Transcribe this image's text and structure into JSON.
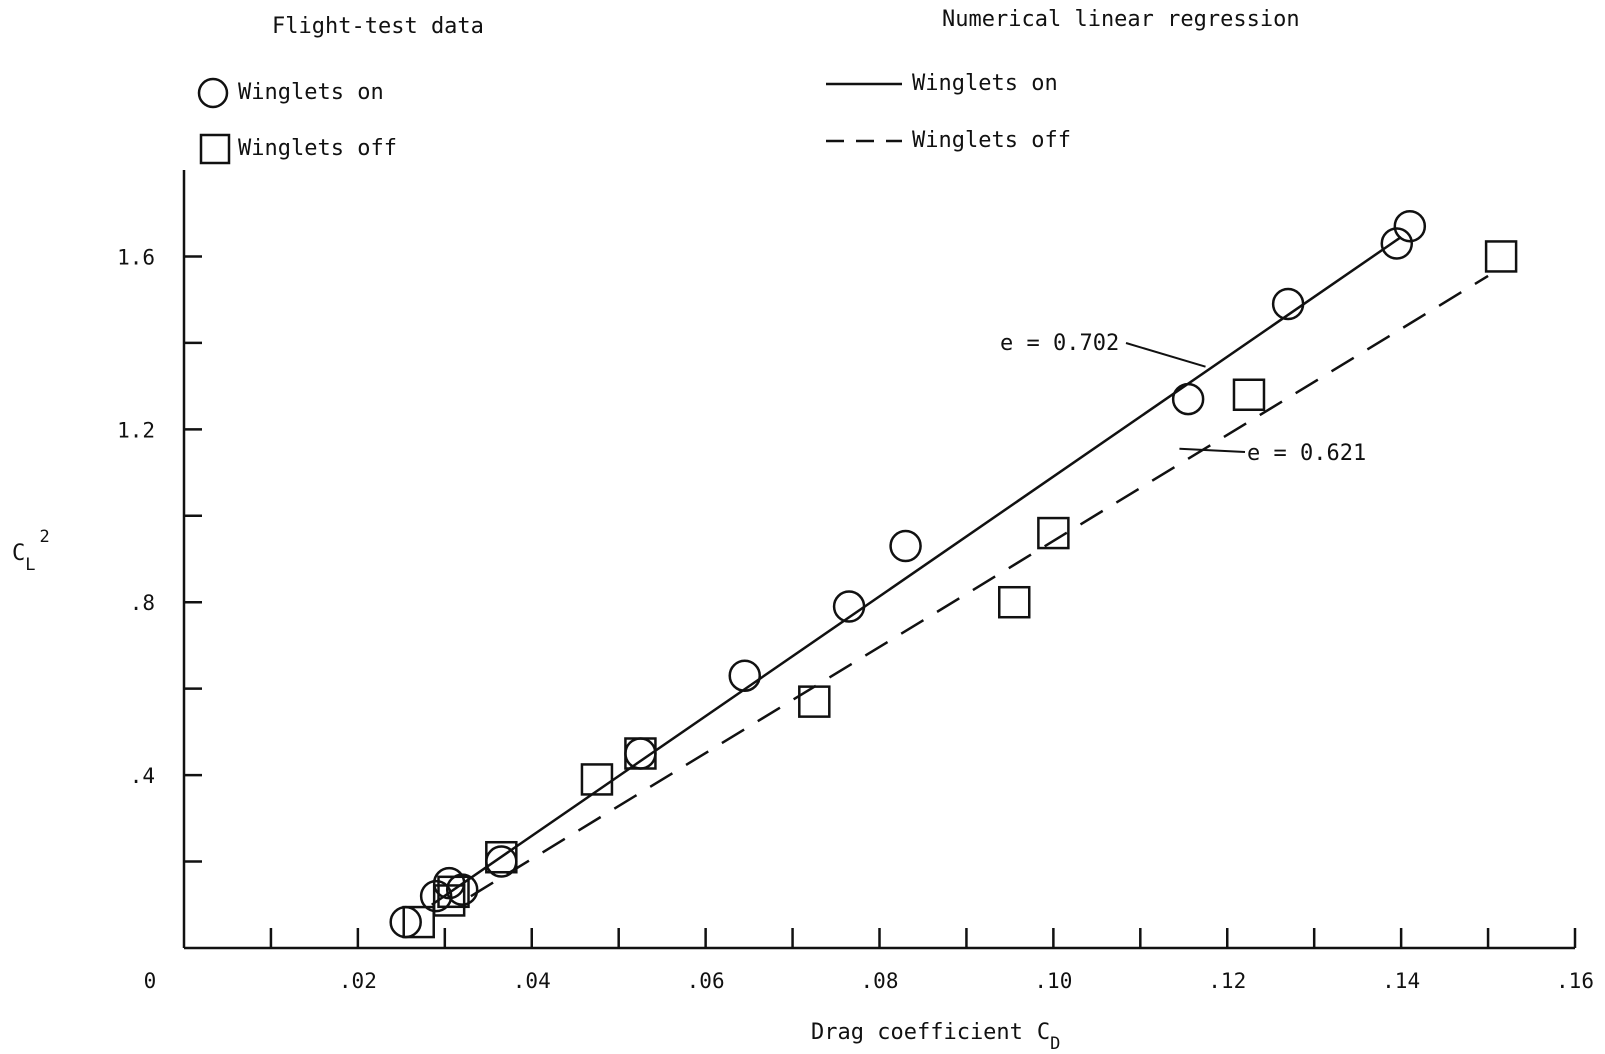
{
  "chart_data": {
    "type": "scatter",
    "title": "",
    "xlabel": "Drag coefficient",
    "xlabel_symbol": "C",
    "xlabel_subscript": "D",
    "ylabel_symbol": "C",
    "ylabel_subscript": "L",
    "ylabel_superscript": "2",
    "xlim": [
      0,
      0.16
    ],
    "ylim": [
      0,
      1.8
    ],
    "x_ticks": [
      0.01,
      0.02,
      0.03,
      0.04,
      0.05,
      0.06,
      0.07,
      0.08,
      0.09,
      0.1,
      0.11,
      0.12,
      0.13,
      0.14,
      0.15,
      0.16
    ],
    "x_tick_labels": [
      {
        "value": 0,
        "label": "0"
      },
      {
        "value": 0.02,
        "label": ".02"
      },
      {
        "value": 0.04,
        "label": ".04"
      },
      {
        "value": 0.06,
        "label": ".06"
      },
      {
        "value": 0.08,
        "label": ".08"
      },
      {
        "value": 0.1,
        "label": ".10"
      },
      {
        "value": 0.12,
        "label": ".12"
      },
      {
        "value": 0.14,
        "label": ".14"
      },
      {
        "value": 0.16,
        "label": ".16"
      }
    ],
    "y_ticks": [
      0.2,
      0.4,
      0.6,
      0.8,
      1.0,
      1.2,
      1.4,
      1.6
    ],
    "y_tick_labels": [
      {
        "value": 0.4,
        "label": ".4"
      },
      {
        "value": 0.8,
        "label": ".8"
      },
      {
        "value": 1.2,
        "label": "1.2"
      },
      {
        "value": 1.6,
        "label": "1.6"
      }
    ],
    "grid": false,
    "legend": {
      "left_title": "Flight-test data",
      "right_title": "Numerical linear regression",
      "items": [
        {
          "marker": "circle",
          "label": "Winglets on"
        },
        {
          "marker": "square",
          "label": "Winglets off"
        },
        {
          "line": "solid",
          "label": "Winglets on"
        },
        {
          "line": "dashed",
          "label": "Winglets off"
        }
      ]
    },
    "series": [
      {
        "name": "Winglets on",
        "marker": "circle",
        "points": [
          {
            "x": 0.0255,
            "y": 0.06
          },
          {
            "x": 0.029,
            "y": 0.12
          },
          {
            "x": 0.0305,
            "y": 0.15
          },
          {
            "x": 0.032,
            "y": 0.135
          },
          {
            "x": 0.0365,
            "y": 0.2
          },
          {
            "x": 0.0525,
            "y": 0.45
          },
          {
            "x": 0.0645,
            "y": 0.63
          },
          {
            "x": 0.0765,
            "y": 0.79
          },
          {
            "x": 0.083,
            "y": 0.93
          },
          {
            "x": 0.1155,
            "y": 1.27
          },
          {
            "x": 0.127,
            "y": 1.49
          },
          {
            "x": 0.1395,
            "y": 1.63
          },
          {
            "x": 0.141,
            "y": 1.67
          }
        ]
      },
      {
        "name": "Winglets off",
        "marker": "square",
        "points": [
          {
            "x": 0.027,
            "y": 0.06
          },
          {
            "x": 0.0305,
            "y": 0.11
          },
          {
            "x": 0.031,
            "y": 0.13
          },
          {
            "x": 0.0365,
            "y": 0.21
          },
          {
            "x": 0.0475,
            "y": 0.39
          },
          {
            "x": 0.0525,
            "y": 0.45
          },
          {
            "x": 0.0725,
            "y": 0.57
          },
          {
            "x": 0.0955,
            "y": 0.8
          },
          {
            "x": 0.1,
            "y": 0.96
          },
          {
            "x": 0.1225,
            "y": 1.28
          },
          {
            "x": 0.1515,
            "y": 1.6
          }
        ]
      }
    ],
    "regression": [
      {
        "name": "Winglets on",
        "style": "solid",
        "from": {
          "x": 0.0285,
          "y": 0.1
        },
        "to": {
          "x": 0.14,
          "y": 1.645
        }
      },
      {
        "name": "Winglets off",
        "style": "dashed",
        "from": {
          "x": 0.033,
          "y": 0.12
        },
        "to": {
          "x": 0.15,
          "y": 1.555
        }
      }
    ],
    "annotations": [
      {
        "text": "e = 0.702",
        "target": {
          "x": 0.1175,
          "y": 1.345
        }
      },
      {
        "text": "e = 0.621",
        "target": {
          "x": 0.1145,
          "y": 1.155
        }
      }
    ]
  }
}
